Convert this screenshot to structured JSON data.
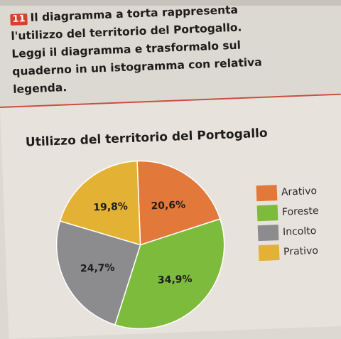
{
  "exercise": {
    "number": "11",
    "lines": [
      "Il diagramma a torta rappresenta",
      "l'utilizzo del territorio del Portogallo.",
      "Leggi il diagramma e trasformalo sul",
      "quaderno in un istogramma con relativa",
      "legenda."
    ]
  },
  "chart_data": {
    "type": "pie",
    "title": "Utilizzo del territorio del Portogallo",
    "legend_position": "right",
    "slices": [
      {
        "label": "Arativo",
        "value": 20.6,
        "value_label": "20,6%",
        "color": "#e2793b"
      },
      {
        "label": "Foreste",
        "value": 34.9,
        "value_label": "34,9%",
        "color": "#7dbb3c"
      },
      {
        "label": "Incolto",
        "value": 24.7,
        "value_label": "24,7%",
        "color": "#8c8c8e"
      },
      {
        "label": "Prativo",
        "value": 19.8,
        "value_label": "19,8%",
        "color": "#e3b235"
      }
    ]
  }
}
